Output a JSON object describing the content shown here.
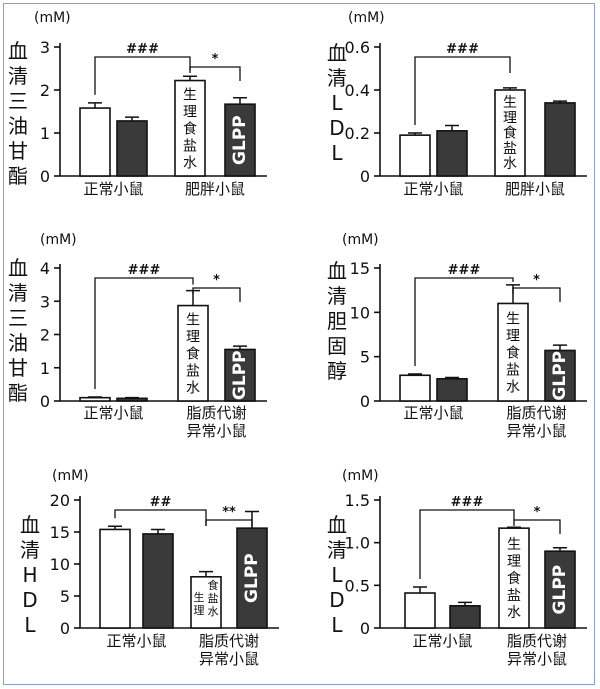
{
  "colors": {
    "control": "#ffffff",
    "treatment": "#3a3a3a",
    "outline": "#111111"
  },
  "chart_data": [
    {
      "type": "bar",
      "unit": "(mM)",
      "ylabel": "血清三油甘酯",
      "ylim": [
        0,
        3
      ],
      "yticks": [
        0,
        1,
        2,
        3
      ],
      "groups": [
        "正常小鼠",
        "肥胖小鼠"
      ],
      "bars": [
        {
          "value": 1.58,
          "err": 0.12,
          "fill": "white",
          "label": ""
        },
        {
          "value": 1.28,
          "err": 0.09,
          "fill": "dark",
          "label": ""
        },
        {
          "value": 2.22,
          "err": 0.1,
          "fill": "white",
          "label": "生理食盐水"
        },
        {
          "value": 1.67,
          "err": 0.15,
          "fill": "dark",
          "label": "GLPP"
        }
      ],
      "sig": [
        {
          "from": 0,
          "to": 2,
          "text": "###"
        },
        {
          "from": 2,
          "to": 3,
          "text": "*"
        }
      ]
    },
    {
      "type": "bar",
      "unit": "(mM)",
      "ylabel": "血清LDL",
      "ylim": [
        0,
        0.6
      ],
      "yticks": [
        "0",
        "0.2",
        "0.4",
        "0.6"
      ],
      "groups": [
        "正常小鼠",
        "肥胖小鼠"
      ],
      "bars": [
        {
          "value": 0.19,
          "err": 0.01,
          "fill": "white",
          "label": ""
        },
        {
          "value": 0.21,
          "err": 0.025,
          "fill": "dark",
          "label": ""
        },
        {
          "value": 0.4,
          "err": 0.01,
          "fill": "white",
          "label": "生理食盐水"
        },
        {
          "value": 0.34,
          "err": 0.008,
          "fill": "dark",
          "label": ""
        }
      ],
      "sig": [
        {
          "from": 0,
          "to": 2,
          "text": "###"
        }
      ]
    },
    {
      "type": "bar",
      "unit": "(mM)",
      "ylabel": "血清三油甘酯",
      "ylim": [
        0,
        4
      ],
      "yticks": [
        0,
        1,
        2,
        3,
        4
      ],
      "groups": [
        "正常小鼠",
        "脂质代谢\n异常小鼠"
      ],
      "bars": [
        {
          "value": 0.1,
          "err": 0.02,
          "fill": "white",
          "label": ""
        },
        {
          "value": 0.08,
          "err": 0.02,
          "fill": "dark",
          "label": ""
        },
        {
          "value": 2.87,
          "err": 0.45,
          "fill": "white",
          "label": "生理食盐水"
        },
        {
          "value": 1.55,
          "err": 0.1,
          "fill": "dark",
          "label": "GLPP"
        }
      ],
      "sig": [
        {
          "from": 0,
          "to": 2,
          "text": "###"
        },
        {
          "from": 2,
          "to": 3,
          "text": "*"
        }
      ]
    },
    {
      "type": "bar",
      "unit": "(mM)",
      "ylabel": "血清胆固醇",
      "ylim": [
        0,
        15
      ],
      "yticks": [
        0,
        5,
        10,
        15
      ],
      "groups": [
        "正常小鼠",
        "脂质代谢\n异常小鼠"
      ],
      "bars": [
        {
          "value": 2.9,
          "err": 0.15,
          "fill": "white",
          "label": ""
        },
        {
          "value": 2.5,
          "err": 0.15,
          "fill": "dark",
          "label": ""
        },
        {
          "value": 11.0,
          "err": 2.1,
          "fill": "white",
          "label": "生理食盐水"
        },
        {
          "value": 5.7,
          "err": 0.6,
          "fill": "dark",
          "label": "GLPP"
        }
      ],
      "sig": [
        {
          "from": 0,
          "to": 2,
          "text": "###"
        },
        {
          "from": 2,
          "to": 3,
          "text": "*"
        }
      ]
    },
    {
      "type": "bar",
      "unit": "(mM)",
      "ylabel": "血清HDL",
      "ylim": [
        0,
        20
      ],
      "yticks": [
        0,
        5,
        10,
        15,
        20
      ],
      "groups": [
        "正常小鼠",
        "脂质代谢\n异常小鼠"
      ],
      "bars": [
        {
          "value": 15.4,
          "err": 0.5,
          "fill": "white",
          "label": ""
        },
        {
          "value": 14.7,
          "err": 0.7,
          "fill": "dark",
          "label": ""
        },
        {
          "value": 8.0,
          "err": 0.8,
          "fill": "white",
          "label": "生理食盐水"
        },
        {
          "value": 15.6,
          "err": 2.6,
          "fill": "dark",
          "label": "GLPP"
        }
      ],
      "sig": [
        {
          "from": 0,
          "to": 2,
          "text": "##"
        },
        {
          "from": 2,
          "to": 3,
          "text": "**"
        }
      ]
    },
    {
      "type": "bar",
      "unit": "(mM)",
      "ylabel": "血清LDL",
      "ylim": [
        0,
        1.5
      ],
      "yticks": [
        "0",
        "0.5",
        "1.0",
        "1.5"
      ],
      "groups": [
        "正常小鼠",
        "脂质代谢\n异常小鼠"
      ],
      "bars": [
        {
          "value": 0.41,
          "err": 0.07,
          "fill": "white",
          "label": ""
        },
        {
          "value": 0.26,
          "err": 0.04,
          "fill": "dark",
          "label": ""
        },
        {
          "value": 1.17,
          "err": 0.01,
          "fill": "white",
          "label": "生理食盐水"
        },
        {
          "value": 0.9,
          "err": 0.04,
          "fill": "dark",
          "label": "GLPP"
        }
      ],
      "sig": [
        {
          "from": 0,
          "to": 2,
          "text": "###"
        },
        {
          "from": 2,
          "to": 3,
          "text": "*"
        }
      ]
    }
  ]
}
